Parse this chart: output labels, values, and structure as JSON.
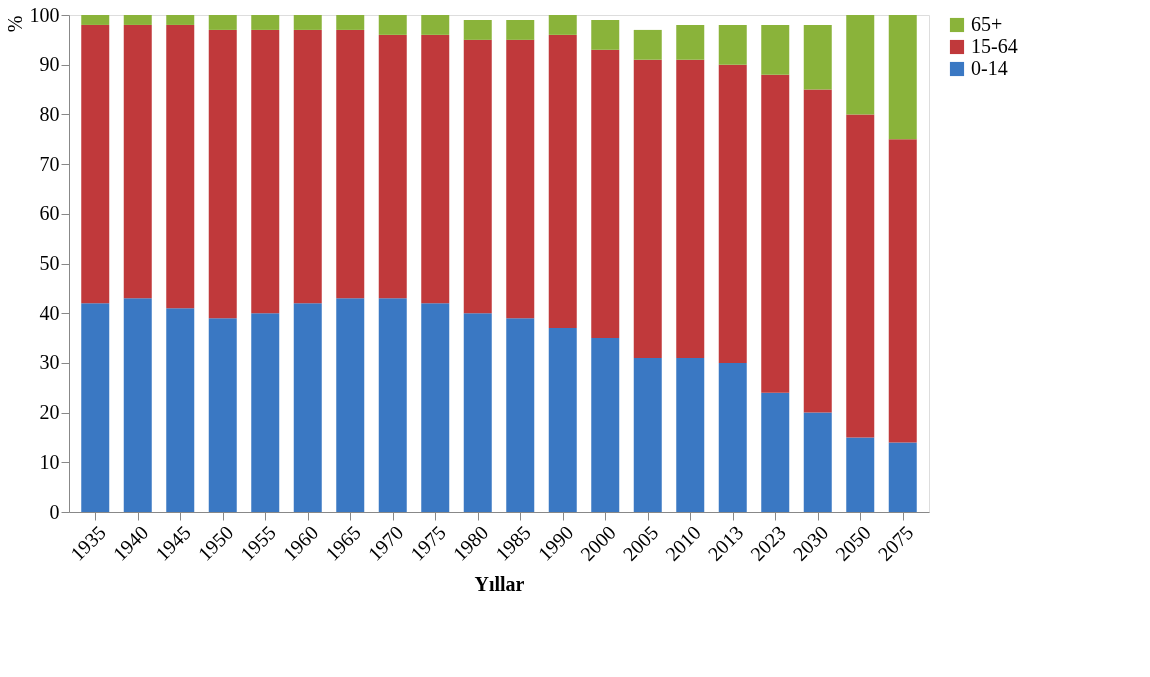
{
  "chart_data": {
    "type": "bar",
    "stacked": true,
    "xlabel": "Yıllar",
    "ylabel": "%",
    "categories": [
      "1935",
      "1940",
      "1945",
      "1950",
      "1955",
      "1960",
      "1965",
      "1970",
      "1975",
      "1980",
      "1985",
      "1990",
      "2000",
      "2005",
      "2010",
      "2013",
      "2023",
      "2030",
      "2050",
      "2075"
    ],
    "series": [
      {
        "name": "0-14",
        "color": "#3a78c3",
        "values": [
          42,
          43,
          41,
          39,
          40,
          42,
          43,
          43,
          42,
          40,
          39,
          37,
          35,
          31,
          31,
          30,
          24,
          20,
          15,
          14
        ]
      },
      {
        "name": "15-64",
        "color": "#c0393b",
        "values": [
          56,
          55,
          57,
          58,
          57,
          55,
          54,
          53,
          54,
          55,
          56,
          59,
          58,
          60,
          60,
          60,
          64,
          65,
          65,
          61
        ]
      },
      {
        "name": "65+",
        "color": "#8ab33a",
        "values": [
          2,
          2,
          2,
          3,
          3,
          3,
          3,
          4,
          4,
          4,
          4,
          4,
          6,
          6,
          7,
          8,
          10,
          13,
          20,
          25
        ]
      }
    ],
    "ylim": [
      0,
      100
    ],
    "yticks": [
      0,
      10,
      20,
      30,
      40,
      50,
      60,
      70,
      80,
      90,
      100
    ],
    "grid": false,
    "legend": "right"
  }
}
